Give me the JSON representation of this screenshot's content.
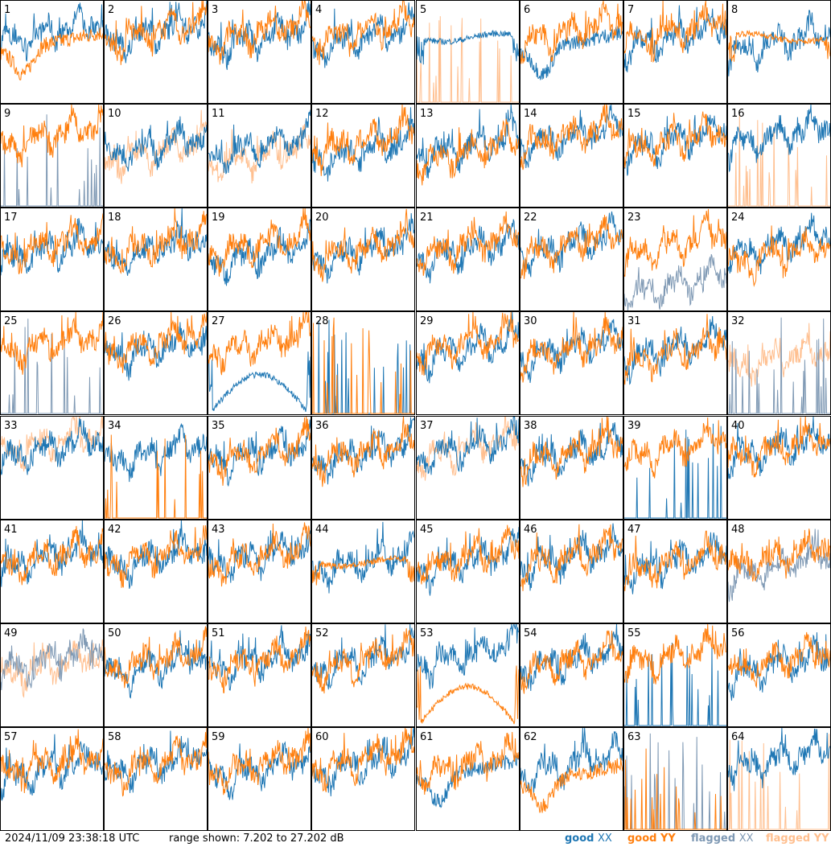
{
  "footer": {
    "timestamp": "2024/11/09 23:38:18 UTC",
    "range_text": "range shown: 7.202 to 27.202 dB"
  },
  "legend": [
    {
      "label_a": "good",
      "label_b": "XX",
      "color": "#1f77b4"
    },
    {
      "label_a": "good",
      "label_b": "YY",
      "color": "#ff7f0e"
    },
    {
      "label_a": "flagged",
      "label_b": "XX",
      "color": "#7f99b4"
    },
    {
      "label_a": "flagged",
      "label_b": "YY",
      "color": "#ffbf8f"
    }
  ],
  "chart_data": {
    "type": "line",
    "grid_rows": 8,
    "grid_cols": 8,
    "ylim": [
      7.202,
      27.202
    ],
    "y_unit": "dB",
    "series_colors": {
      "good_xx": "#1f77b4",
      "good_yy": "#ff7f0e",
      "flagged_xx": "#7f99b4",
      "flagged_yy": "#ffbf8f"
    },
    "panels": [
      {
        "id": "1",
        "xx": "good",
        "yy": "good",
        "xx_shape": "normal",
        "yy_shape": "dip",
        "xx_level": 22,
        "yy_level": 17
      },
      {
        "id": "2",
        "xx": "good",
        "yy": "good",
        "xx_shape": "normal",
        "yy_shape": "normal",
        "xx_level": 22,
        "yy_level": 22
      },
      {
        "id": "3",
        "xx": "good",
        "yy": "good",
        "xx_shape": "normal",
        "yy_shape": "normal",
        "xx_level": 21,
        "yy_level": 22
      },
      {
        "id": "4",
        "xx": "good",
        "yy": "good",
        "xx_shape": "normal",
        "yy_shape": "normal",
        "xx_level": 21,
        "yy_level": 22
      },
      {
        "id": "5",
        "xx": "good",
        "yy": "flagged",
        "xx_shape": "smooth",
        "yy_shape": "spiky",
        "xx_level": 21,
        "yy_level": 8
      },
      {
        "id": "6",
        "xx": "good",
        "yy": "good",
        "xx_shape": "dip",
        "yy_shape": "normal",
        "xx_level": 17,
        "yy_level": 22
      },
      {
        "id": "7",
        "xx": "good",
        "yy": "good",
        "xx_shape": "normal",
        "yy_shape": "normal",
        "xx_level": 21,
        "yy_level": 22
      },
      {
        "id": "8",
        "xx": "good",
        "yy": "good",
        "xx_shape": "normal",
        "yy_shape": "smooth",
        "xx_level": 20,
        "yy_level": 21
      },
      {
        "id": "9",
        "xx": "flagged",
        "yy": "good",
        "xx_shape": "spiky",
        "yy_shape": "normal",
        "xx_level": 8,
        "yy_level": 22
      },
      {
        "id": "10",
        "xx": "good",
        "yy": "flagged",
        "xx_shape": "normal",
        "yy_shape": "normal",
        "xx_level": 20,
        "yy_level": 19
      },
      {
        "id": "11",
        "xx": "good",
        "yy": "flagged",
        "xx_shape": "normal",
        "yy_shape": "normal",
        "xx_level": 20,
        "yy_level": 18
      },
      {
        "id": "12",
        "xx": "good",
        "yy": "good",
        "xx_shape": "normal",
        "yy_shape": "normal",
        "xx_level": 19,
        "yy_level": 21
      },
      {
        "id": "13",
        "xx": "good",
        "yy": "good",
        "xx_shape": "normal",
        "yy_shape": "normal",
        "xx_level": 20,
        "yy_level": 19
      },
      {
        "id": "14",
        "xx": "good",
        "yy": "good",
        "xx_shape": "normal",
        "yy_shape": "normal",
        "xx_level": 22,
        "yy_level": 22
      },
      {
        "id": "15",
        "xx": "good",
        "yy": "good",
        "xx_shape": "normal",
        "yy_shape": "normal",
        "xx_level": 21,
        "yy_level": 21
      },
      {
        "id": "16",
        "xx": "good",
        "yy": "flagged",
        "xx_shape": "normal",
        "yy_shape": "spiky",
        "xx_level": 22,
        "yy_level": 8
      },
      {
        "id": "17",
        "xx": "good",
        "yy": "good",
        "xx_shape": "normal",
        "yy_shape": "normal",
        "xx_level": 20,
        "yy_level": 21
      },
      {
        "id": "18",
        "xx": "good",
        "yy": "good",
        "xx_shape": "normal",
        "yy_shape": "normal",
        "xx_level": 20,
        "yy_level": 21
      },
      {
        "id": "19",
        "xx": "good",
        "yy": "good",
        "xx_shape": "normal",
        "yy_shape": "normal",
        "xx_level": 19,
        "yy_level": 21
      },
      {
        "id": "20",
        "xx": "good",
        "yy": "good",
        "xx_shape": "normal",
        "yy_shape": "normal",
        "xx_level": 20,
        "yy_level": 20
      },
      {
        "id": "21",
        "xx": "good",
        "yy": "good",
        "xx_shape": "normal",
        "yy_shape": "normal",
        "xx_level": 20,
        "yy_level": 21
      },
      {
        "id": "22",
        "xx": "good",
        "yy": "good",
        "xx_shape": "normal",
        "yy_shape": "normal",
        "xx_level": 21,
        "yy_level": 21
      },
      {
        "id": "23",
        "xx": "flagged",
        "yy": "good",
        "xx_shape": "normal",
        "yy_shape": "normal",
        "xx_level": 13,
        "yy_level": 21
      },
      {
        "id": "24",
        "xx": "good",
        "yy": "good",
        "xx_shape": "normal",
        "yy_shape": "normal",
        "xx_level": 21,
        "yy_level": 19
      },
      {
        "id": "25",
        "xx": "flagged",
        "yy": "good",
        "xx_shape": "spiky",
        "yy_shape": "normal",
        "xx_level": 8,
        "yy_level": 22
      },
      {
        "id": "26",
        "xx": "good",
        "yy": "good",
        "xx_shape": "normal",
        "yy_shape": "normal",
        "xx_level": 21,
        "yy_level": 22
      },
      {
        "id": "27",
        "xx": "good",
        "yy": "good",
        "xx_shape": "hump",
        "yy_shape": "normal",
        "xx_level": 14,
        "yy_level": 22
      },
      {
        "id": "28",
        "xx": "good",
        "yy": "good",
        "xx_shape": "spiky",
        "yy_shape": "spiky",
        "xx_level": 8,
        "yy_level": 8
      },
      {
        "id": "29",
        "xx": "good",
        "yy": "good",
        "xx_shape": "normal",
        "yy_shape": "normal",
        "xx_level": 21,
        "yy_level": 22
      },
      {
        "id": "30",
        "xx": "good",
        "yy": "good",
        "xx_shape": "normal",
        "yy_shape": "normal",
        "xx_level": 21,
        "yy_level": 21
      },
      {
        "id": "31",
        "xx": "good",
        "yy": "good",
        "xx_shape": "normal",
        "yy_shape": "normal",
        "xx_level": 21,
        "yy_level": 20
      },
      {
        "id": "32",
        "xx": "flagged",
        "yy": "flagged",
        "xx_shape": "spiky",
        "yy_shape": "normal",
        "xx_level": 8,
        "yy_level": 19
      },
      {
        "id": "33",
        "xx": "good",
        "yy": "flagged",
        "xx_shape": "normal",
        "yy_shape": "normal",
        "xx_level": 22,
        "yy_level": 23
      },
      {
        "id": "34",
        "xx": "good",
        "yy": "good",
        "xx_shape": "normal",
        "yy_shape": "spiky",
        "xx_level": 21,
        "yy_level": 8
      },
      {
        "id": "35",
        "xx": "good",
        "yy": "good",
        "xx_shape": "normal",
        "yy_shape": "normal",
        "xx_level": 21,
        "yy_level": 21
      },
      {
        "id": "36",
        "xx": "good",
        "yy": "good",
        "xx_shape": "normal",
        "yy_shape": "normal",
        "xx_level": 21,
        "yy_level": 21
      },
      {
        "id": "37",
        "xx": "good",
        "yy": "flagged",
        "xx_shape": "normal",
        "yy_shape": "normal",
        "xx_level": 22,
        "yy_level": 22
      },
      {
        "id": "38",
        "xx": "good",
        "yy": "good",
        "xx_shape": "normal",
        "yy_shape": "normal",
        "xx_level": 21,
        "yy_level": 21
      },
      {
        "id": "39",
        "xx": "good",
        "yy": "good",
        "xx_shape": "spiky",
        "yy_shape": "normal",
        "xx_level": 8,
        "yy_level": 22
      },
      {
        "id": "40",
        "xx": "good",
        "yy": "good",
        "xx_shape": "normal",
        "yy_shape": "normal",
        "xx_level": 22,
        "yy_level": 22
      },
      {
        "id": "41",
        "xx": "good",
        "yy": "good",
        "xx_shape": "normal",
        "yy_shape": "normal",
        "xx_level": 21,
        "yy_level": 21
      },
      {
        "id": "42",
        "xx": "good",
        "yy": "good",
        "xx_shape": "normal",
        "yy_shape": "normal",
        "xx_level": 21,
        "yy_level": 21
      },
      {
        "id": "43",
        "xx": "good",
        "yy": "good",
        "xx_shape": "normal",
        "yy_shape": "normal",
        "xx_level": 21,
        "yy_level": 21
      },
      {
        "id": "44",
        "xx": "good",
        "yy": "good",
        "xx_shape": "normal",
        "yy_shape": "smooth",
        "xx_level": 20,
        "yy_level": 20
      },
      {
        "id": "45",
        "xx": "good",
        "yy": "good",
        "xx_shape": "normal",
        "yy_shape": "normal",
        "xx_level": 20,
        "yy_level": 21
      },
      {
        "id": "46",
        "xx": "good",
        "yy": "good",
        "xx_shape": "normal",
        "yy_shape": "normal",
        "xx_level": 21,
        "yy_level": 21
      },
      {
        "id": "47",
        "xx": "good",
        "yy": "good",
        "xx_shape": "normal",
        "yy_shape": "normal",
        "xx_level": 20,
        "yy_level": 20
      },
      {
        "id": "48",
        "xx": "flagged",
        "yy": "good",
        "xx_shape": "normal",
        "yy_shape": "normal",
        "xx_level": 19,
        "yy_level": 21
      },
      {
        "id": "49",
        "xx": "flagged",
        "yy": "flagged",
        "xx_shape": "normal",
        "yy_shape": "normal",
        "xx_level": 21,
        "yy_level": 20
      },
      {
        "id": "50",
        "xx": "good",
        "yy": "good",
        "xx_shape": "normal",
        "yy_shape": "normal",
        "xx_level": 20,
        "yy_level": 21
      },
      {
        "id": "51",
        "xx": "good",
        "yy": "good",
        "xx_shape": "normal",
        "yy_shape": "normal",
        "xx_level": 21,
        "yy_level": 21
      },
      {
        "id": "52",
        "xx": "good",
        "yy": "good",
        "xx_shape": "normal",
        "yy_shape": "normal",
        "xx_level": 21,
        "yy_level": 21
      },
      {
        "id": "53",
        "xx": "good",
        "yy": "good",
        "xx_shape": "normal",
        "yy_shape": "hump",
        "xx_level": 22,
        "yy_level": 14
      },
      {
        "id": "54",
        "xx": "good",
        "yy": "good",
        "xx_shape": "normal",
        "yy_shape": "normal",
        "xx_level": 21,
        "yy_level": 21
      },
      {
        "id": "55",
        "xx": "good",
        "yy": "good",
        "xx_shape": "spiky",
        "yy_shape": "normal",
        "xx_level": 8,
        "yy_level": 22
      },
      {
        "id": "56",
        "xx": "good",
        "yy": "good",
        "xx_shape": "normal",
        "yy_shape": "normal",
        "xx_level": 20,
        "yy_level": 21
      },
      {
        "id": "57",
        "xx": "good",
        "yy": "good",
        "xx_shape": "normal",
        "yy_shape": "normal",
        "xx_level": 20,
        "yy_level": 21
      },
      {
        "id": "58",
        "xx": "good",
        "yy": "good",
        "xx_shape": "normal",
        "yy_shape": "normal",
        "xx_level": 21,
        "yy_level": 21
      },
      {
        "id": "59",
        "xx": "good",
        "yy": "good",
        "xx_shape": "normal",
        "yy_shape": "normal",
        "xx_level": 20,
        "yy_level": 21
      },
      {
        "id": "60",
        "xx": "good",
        "yy": "good",
        "xx_shape": "normal",
        "yy_shape": "normal",
        "xx_level": 21,
        "yy_level": 22
      },
      {
        "id": "61",
        "xx": "good",
        "yy": "good",
        "xx_shape": "dip",
        "yy_shape": "normal",
        "xx_level": 17,
        "yy_level": 21
      },
      {
        "id": "62",
        "xx": "good",
        "yy": "good",
        "xx_shape": "normal",
        "yy_shape": "dip",
        "xx_level": 21,
        "yy_level": 16
      },
      {
        "id": "63",
        "xx": "flagged",
        "yy": "good",
        "xx_shape": "spiky",
        "yy_shape": "spiky",
        "xx_level": 8,
        "yy_level": 8
      },
      {
        "id": "64",
        "xx": "good",
        "yy": "flagged",
        "xx_shape": "normal",
        "yy_shape": "spiky",
        "xx_level": 22,
        "yy_level": 8
      }
    ]
  }
}
